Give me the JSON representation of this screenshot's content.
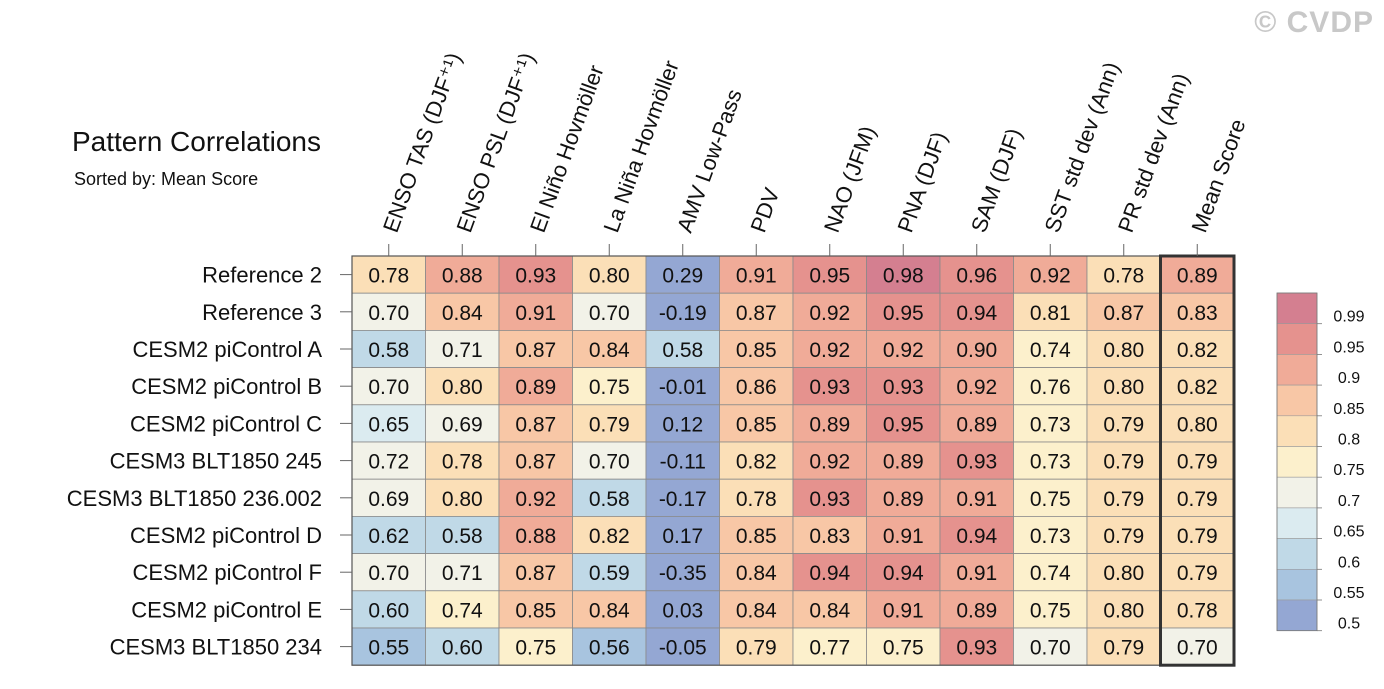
{
  "watermark": "© CVDP",
  "chart_data": {
    "type": "heatmap",
    "title": "Pattern Correlations",
    "subtitle": "Sorted by: Mean Score",
    "columns": [
      "ENSO TAS (DJF⁺¹)",
      "ENSO PSL (DJF⁺¹)",
      "El Niño Hovmöller",
      "La Niña Hovmöller",
      "AMV Low-Pass",
      "PDV",
      "NAO (JFM)",
      "PNA (DJF)",
      "SAM (DJF)",
      "SST std dev (Ann)",
      "PR std dev (Ann)",
      "Mean Score"
    ],
    "rows": [
      "Reference 2",
      "Reference 3",
      "CESM2 piControl A",
      "CESM2 piControl B",
      "CESM2 piControl C",
      "CESM3 BLT1850 245",
      "CESM3 BLT1850 236.002",
      "CESM2 piControl D",
      "CESM2 piControl F",
      "CESM2 piControl E",
      "CESM3 BLT1850 234"
    ],
    "values": [
      [
        "0.78",
        "0.88",
        "0.93",
        "0.80",
        "0.29",
        "0.91",
        "0.95",
        "0.98",
        "0.96",
        "0.92",
        "0.78",
        "0.89"
      ],
      [
        "0.70",
        "0.84",
        "0.91",
        "0.70",
        "-0.19",
        "0.87",
        "0.92",
        "0.95",
        "0.94",
        "0.81",
        "0.87",
        "0.83"
      ],
      [
        "0.58",
        "0.71",
        "0.87",
        "0.84",
        "0.58",
        "0.85",
        "0.92",
        "0.92",
        "0.90",
        "0.74",
        "0.80",
        "0.82"
      ],
      [
        "0.70",
        "0.80",
        "0.89",
        "0.75",
        "-0.01",
        "0.86",
        "0.93",
        "0.93",
        "0.92",
        "0.76",
        "0.80",
        "0.82"
      ],
      [
        "0.65",
        "0.69",
        "0.87",
        "0.79",
        "0.12",
        "0.85",
        "0.89",
        "0.95",
        "0.89",
        "0.73",
        "0.79",
        "0.80"
      ],
      [
        "0.72",
        "0.78",
        "0.87",
        "0.70",
        "-0.11",
        "0.82",
        "0.92",
        "0.89",
        "0.93",
        "0.73",
        "0.79",
        "0.79"
      ],
      [
        "0.69",
        "0.80",
        "0.92",
        "0.58",
        "-0.17",
        "0.78",
        "0.93",
        "0.89",
        "0.91",
        "0.75",
        "0.79",
        "0.79"
      ],
      [
        "0.62",
        "0.58",
        "0.88",
        "0.82",
        "0.17",
        "0.85",
        "0.83",
        "0.91",
        "0.94",
        "0.73",
        "0.79",
        "0.79"
      ],
      [
        "0.70",
        "0.71",
        "0.87",
        "0.59",
        "-0.35",
        "0.84",
        "0.94",
        "0.94",
        "0.91",
        "0.74",
        "0.80",
        "0.79"
      ],
      [
        "0.60",
        "0.74",
        "0.85",
        "0.84",
        "0.03",
        "0.84",
        "0.84",
        "0.91",
        "0.89",
        "0.75",
        "0.80",
        "0.78"
      ],
      [
        "0.55",
        "0.60",
        "0.75",
        "0.56",
        "-0.05",
        "0.79",
        "0.77",
        "0.75",
        "0.93",
        "0.70",
        "0.79",
        "0.70"
      ]
    ],
    "highlighted_column": "Mean Score",
    "colorbar": {
      "labels": [
        "0.99",
        "0.95",
        "0.9",
        "0.85",
        "0.8",
        "0.75",
        "0.7",
        "0.65",
        "0.6",
        "0.55",
        "0.5"
      ],
      "colors": [
        "#d47f90",
        "#e5928e",
        "#f0ab98",
        "#f8c7a6",
        "#fbdfb7",
        "#fcf0cc",
        "#f2f2e8",
        "#dbebf0",
        "#c0d9e7",
        "#a8c4df",
        "#94a7d3"
      ]
    },
    "legend_position": "right"
  }
}
